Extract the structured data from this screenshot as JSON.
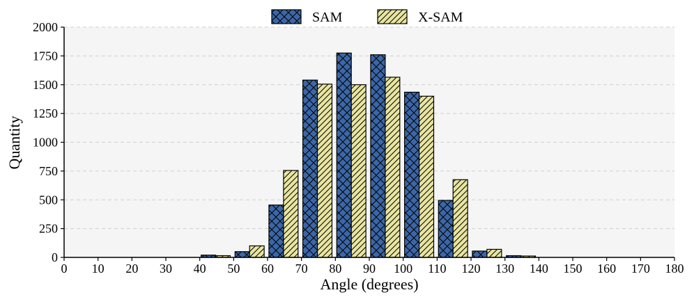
{
  "chart_data": {
    "type": "bar",
    "title": "",
    "xlabel": "Angle (degrees)",
    "ylabel": "Quantity",
    "xlim": [
      0,
      180
    ],
    "ylim": [
      0,
      2000
    ],
    "grid": true,
    "legend_position": "top-center",
    "x_ticks": [
      "0",
      "10",
      "20",
      "30",
      "40",
      "50",
      "60",
      "70",
      "80",
      "90",
      "100",
      "110",
      "120",
      "130",
      "140",
      "150",
      "160",
      "170",
      "180"
    ],
    "y_ticks": [
      "0",
      "250",
      "500",
      "750",
      "1000",
      "1250",
      "1500",
      "1750",
      "2000"
    ],
    "bin_width": 10,
    "categories": [
      0,
      10,
      20,
      30,
      40,
      50,
      60,
      70,
      80,
      90,
      100,
      110,
      120,
      130,
      140,
      150,
      160,
      170
    ],
    "series": [
      {
        "name": "SAM",
        "color": "#3b67a8",
        "pattern": "crosshatch",
        "values": [
          0,
          0,
          0,
          0,
          20,
          50,
          455,
          1540,
          1775,
          1760,
          1435,
          495,
          55,
          15,
          0,
          0,
          0,
          0
        ]
      },
      {
        "name": "X-SAM",
        "color": "#e8e5a0",
        "pattern": "diagonal",
        "values": [
          0,
          0,
          0,
          0,
          15,
          100,
          755,
          1505,
          1500,
          1565,
          1400,
          675,
          70,
          12,
          0,
          0,
          0,
          0
        ]
      }
    ]
  }
}
